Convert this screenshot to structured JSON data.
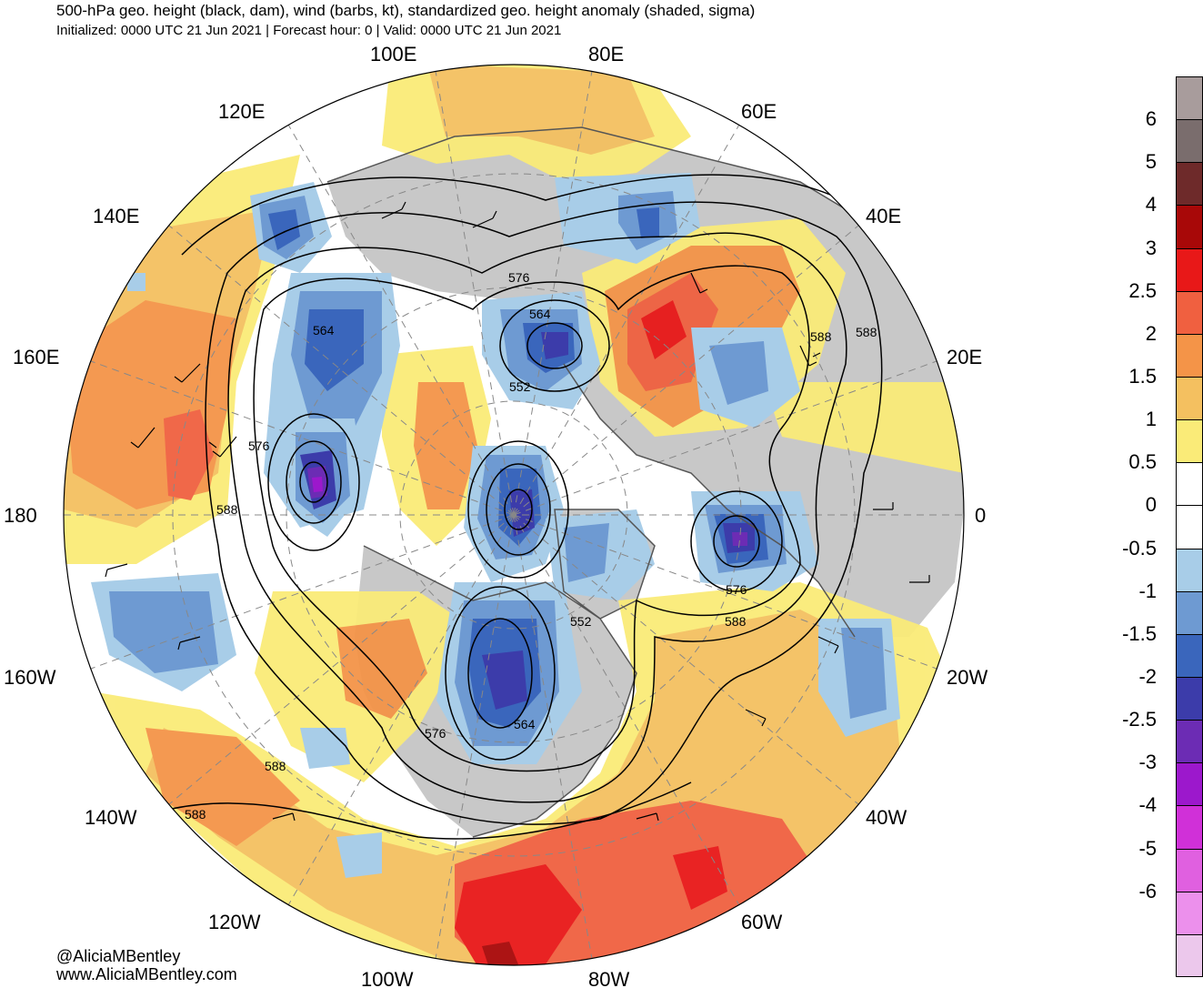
{
  "header": {
    "title": "500-hPa geo. height (black, dam), wind (barbs, kt), standardized geo. height anomaly (shaded, sigma)",
    "subtitle": "Initialized: 0000 UTC 21 Jun 2021 | Forecast hour: 0 | Valid: 0000 UTC 21 Jun 2021"
  },
  "map": {
    "projection": "north-polar-stereographic",
    "longitude_labels": {
      "lon_100E": "100E",
      "lon_80E": "80E",
      "lon_120E": "120E",
      "lon_60E": "60E",
      "lon_140E": "140E",
      "lon_40E": "40E",
      "lon_160E": "160E",
      "lon_20E": "20E",
      "lon_180": "180",
      "lon_0": "0",
      "lon_160W": "160W",
      "lon_20W": "20W",
      "lon_140W": "140W",
      "lon_40W": "40W",
      "lon_120W": "120W",
      "lon_60W": "60W",
      "lon_100W": "100W",
      "lon_80W": "80W"
    },
    "contour_labels": {
      "c576_a": "576",
      "c564_a": "564",
      "c564_b": "564",
      "c552_a": "552",
      "c588_a": "588",
      "c588_b": "588",
      "c576_b": "576",
      "c588_c": "588",
      "c576_c": "576",
      "c552_b": "552",
      "c588_d": "588",
      "c576_d": "576",
      "c564_c": "564",
      "c588_e": "588",
      "c588_f": "588"
    },
    "colors": {
      "land": "#c8c8c8",
      "ocean": "#ffffff",
      "contour": "#000000",
      "coastline": "#555555",
      "gridline": "#888888"
    }
  },
  "colorbar": {
    "labels": [
      "6",
      "5",
      "4",
      "3",
      "2.5",
      "2",
      "1.5",
      "1",
      "0.5",
      "0",
      "-0.5",
      "-1",
      "-1.5",
      "-2",
      "-2.5",
      "-3",
      "-4",
      "-5",
      "-6"
    ],
    "colors": [
      "#a89c9c",
      "#7a6d6d",
      "#6e2a2a",
      "#a80808",
      "#e81818",
      "#f06040",
      "#f49448",
      "#f4c060",
      "#faeb78",
      "#ffffff",
      "#ffffff",
      "#a8cde8",
      "#6e9ad2",
      "#3a66bc",
      "#3c3caa",
      "#6c2cb4",
      "#9c18cc",
      "#d030d8",
      "#e060e0",
      "#ec90ec",
      "#ecc8ec"
    ]
  },
  "credits": {
    "twitter": "@AliciaMBentley",
    "website": "www.AliciaMBentley.com"
  }
}
